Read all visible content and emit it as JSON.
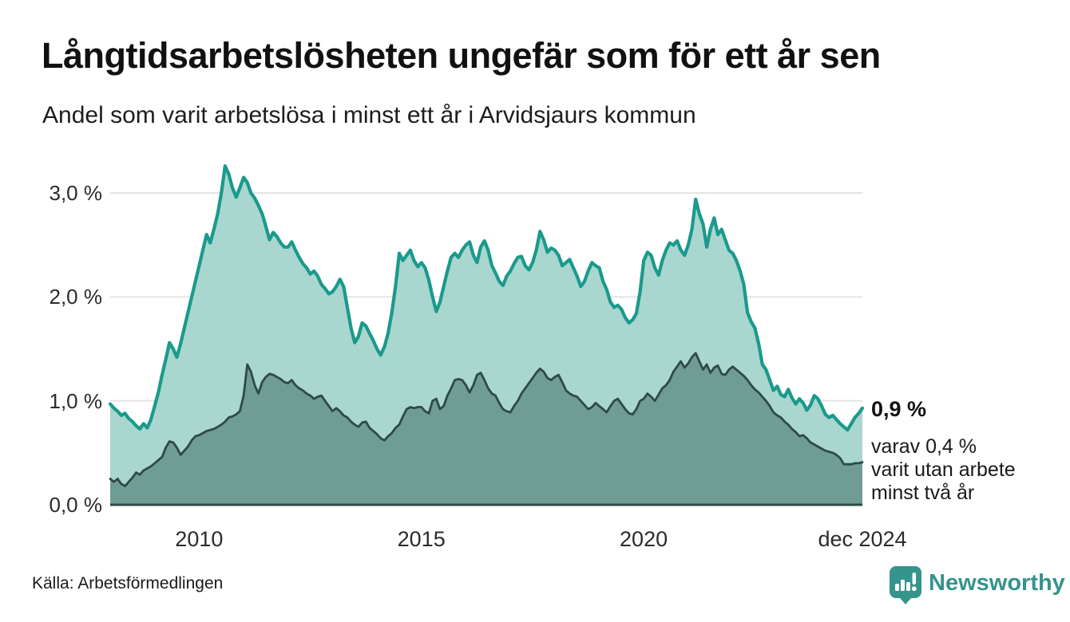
{
  "header": {
    "title": "Långtidsarbetslösheten ungefär som för ett år sen",
    "subtitle": "Andel som varit arbetslösa i minst ett år i Arvidsjaurs kommun"
  },
  "chart_data": {
    "type": "area",
    "title": "Långtidsarbetslösheten ungefär som för ett år sen",
    "subtitle": "Andel som varit arbetslösa i minst ett år i Arvidsjaurs kommun",
    "unit": "%",
    "x_start": "jan 2008",
    "x_end": "dec 2024",
    "points_per_year": 12,
    "ylim": [
      0,
      3.45
    ],
    "grid": true,
    "y_ticks": [
      {
        "value": 3,
        "label": "3,0 %"
      },
      {
        "value": 2,
        "label": "2,0 %"
      },
      {
        "value": 1,
        "label": "1,0 %"
      },
      {
        "value": 0,
        "label": "0,0 %"
      }
    ],
    "x_ticks": [
      {
        "year": 2010,
        "label": "2010"
      },
      {
        "year": 2015,
        "label": "2015"
      },
      {
        "year": 2020,
        "label": "2020"
      },
      {
        "year": 2024.92,
        "label": "dec 2024"
      }
    ],
    "series": [
      {
        "name": "Arbetslösa minst ett år",
        "fill": "#a9d6cf",
        "line": "#1a9a8c",
        "line_width": 4.2,
        "values": [
          0.97,
          0.93,
          0.9,
          0.86,
          0.88,
          0.83,
          0.8,
          0.76,
          0.73,
          0.78,
          0.74,
          0.82,
          0.95,
          1.08,
          1.25,
          1.4,
          1.56,
          1.5,
          1.42,
          1.55,
          1.7,
          1.85,
          2.0,
          2.15,
          2.3,
          2.45,
          2.6,
          2.52,
          2.65,
          2.8,
          3.0,
          3.26,
          3.18,
          3.05,
          2.96,
          3.05,
          3.15,
          3.1,
          3.0,
          2.95,
          2.88,
          2.8,
          2.68,
          2.55,
          2.62,
          2.58,
          2.52,
          2.48,
          2.48,
          2.53,
          2.45,
          2.38,
          2.32,
          2.28,
          2.22,
          2.25,
          2.2,
          2.12,
          2.08,
          2.03,
          2.05,
          2.1,
          2.17,
          2.1,
          1.9,
          1.7,
          1.56,
          1.62,
          1.75,
          1.72,
          1.65,
          1.58,
          1.5,
          1.44,
          1.52,
          1.65,
          1.85,
          2.1,
          2.42,
          2.35,
          2.4,
          2.45,
          2.35,
          2.29,
          2.33,
          2.28,
          2.16,
          2.0,
          1.86,
          1.95,
          2.1,
          2.25,
          2.38,
          2.42,
          2.38,
          2.45,
          2.5,
          2.53,
          2.4,
          2.33,
          2.48,
          2.54,
          2.45,
          2.3,
          2.23,
          2.15,
          2.11,
          2.2,
          2.25,
          2.32,
          2.38,
          2.39,
          2.3,
          2.26,
          2.33,
          2.45,
          2.63,
          2.55,
          2.43,
          2.47,
          2.45,
          2.4,
          2.3,
          2.33,
          2.36,
          2.28,
          2.2,
          2.1,
          2.15,
          2.25,
          2.33,
          2.3,
          2.28,
          2.15,
          2.07,
          1.95,
          1.9,
          1.92,
          1.88,
          1.8,
          1.75,
          1.78,
          1.84,
          2.05,
          2.35,
          2.43,
          2.4,
          2.28,
          2.21,
          2.35,
          2.45,
          2.52,
          2.5,
          2.54,
          2.45,
          2.4,
          2.5,
          2.65,
          2.94,
          2.8,
          2.7,
          2.48,
          2.65,
          2.76,
          2.6,
          2.65,
          2.55,
          2.45,
          2.42,
          2.35,
          2.25,
          2.12,
          1.85,
          1.76,
          1.7,
          1.55,
          1.35,
          1.3,
          1.2,
          1.1,
          1.14,
          1.06,
          1.04,
          1.11,
          1.03,
          0.97,
          1.02,
          0.98,
          0.91,
          0.96,
          1.05,
          1.02,
          0.95,
          0.87,
          0.84,
          0.86,
          0.82,
          0.78,
          0.75,
          0.72,
          0.78,
          0.84,
          0.88,
          0.93
        ]
      },
      {
        "name": "Varav utan arbete minst två år",
        "fill": "#709c96",
        "line": "#2e4a47",
        "line_width": 2.8,
        "values": [
          0.25,
          0.22,
          0.25,
          0.2,
          0.18,
          0.22,
          0.26,
          0.31,
          0.29,
          0.33,
          0.35,
          0.37,
          0.4,
          0.43,
          0.46,
          0.55,
          0.61,
          0.6,
          0.55,
          0.48,
          0.52,
          0.56,
          0.62,
          0.66,
          0.67,
          0.69,
          0.71,
          0.72,
          0.73,
          0.75,
          0.77,
          0.8,
          0.84,
          0.85,
          0.87,
          0.9,
          1.05,
          1.35,
          1.28,
          1.15,
          1.07,
          1.18,
          1.23,
          1.26,
          1.25,
          1.23,
          1.21,
          1.18,
          1.17,
          1.2,
          1.15,
          1.12,
          1.1,
          1.07,
          1.05,
          1.02,
          1.04,
          1.05,
          1.0,
          0.95,
          0.9,
          0.93,
          0.9,
          0.86,
          0.84,
          0.8,
          0.77,
          0.75,
          0.79,
          0.8,
          0.74,
          0.71,
          0.68,
          0.64,
          0.62,
          0.66,
          0.69,
          0.74,
          0.77,
          0.85,
          0.92,
          0.94,
          0.93,
          0.94,
          0.94,
          0.9,
          0.88,
          1.0,
          1.02,
          0.92,
          0.95,
          1.05,
          1.12,
          1.2,
          1.21,
          1.2,
          1.15,
          1.08,
          1.15,
          1.25,
          1.27,
          1.2,
          1.12,
          1.07,
          1.05,
          0.98,
          0.92,
          0.9,
          0.89,
          0.95,
          1.0,
          1.07,
          1.12,
          1.17,
          1.22,
          1.27,
          1.31,
          1.28,
          1.22,
          1.2,
          1.23,
          1.25,
          1.18,
          1.1,
          1.07,
          1.05,
          1.04,
          1.0,
          0.96,
          0.92,
          0.94,
          0.98,
          0.95,
          0.92,
          0.89,
          0.95,
          1.0,
          1.02,
          0.97,
          0.92,
          0.88,
          0.87,
          0.92,
          1.0,
          1.02,
          1.07,
          1.04,
          1.0,
          1.06,
          1.12,
          1.15,
          1.2,
          1.28,
          1.33,
          1.38,
          1.32,
          1.36,
          1.42,
          1.46,
          1.38,
          1.3,
          1.35,
          1.27,
          1.32,
          1.34,
          1.26,
          1.25,
          1.3,
          1.33,
          1.3,
          1.27,
          1.24,
          1.2,
          1.15,
          1.11,
          1.08,
          1.04,
          1.0,
          0.95,
          0.89,
          0.86,
          0.84,
          0.8,
          0.77,
          0.73,
          0.7,
          0.66,
          0.67,
          0.64,
          0.6,
          0.58,
          0.56,
          0.54,
          0.52,
          0.51,
          0.5,
          0.48,
          0.45,
          0.39,
          0.39,
          0.39,
          0.4,
          0.4,
          0.41
        ]
      }
    ],
    "annotation": {
      "value_label": "0,9 %",
      "detail_lines": [
        "varav 0,4 %",
        "varit utan arbete",
        "minst två år"
      ]
    },
    "colors": {
      "grid": "#e4e4e4",
      "baseline": "#2e4a47",
      "accent_teal": "#1a9a8c",
      "light_fill": "#a9d6cf",
      "dark_fill": "#709c96",
      "logo_teal": "#35948b"
    },
    "legend_position": "none"
  },
  "footer": {
    "source": "Källa: Arbetsförmedlingen",
    "logo_text": "Newsworthy"
  }
}
